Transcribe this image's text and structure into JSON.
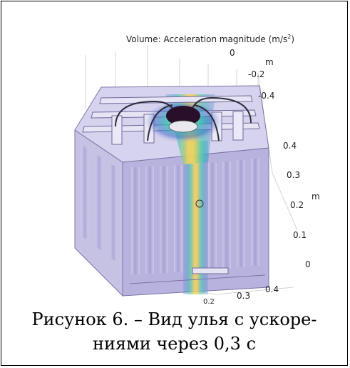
{
  "figure": {
    "title_prefix": "Volume: Acceleration magnitude (m/s",
    "title_sup": "2",
    "title_suffix": ")",
    "axis_top": {
      "ticks": [
        "0",
        "-0.2",
        "-0.4"
      ],
      "unit": "m"
    },
    "axis_right": {
      "ticks": [
        "0.4",
        "0.3",
        "0.2",
        "0.1",
        "0"
      ],
      "unit": "m"
    },
    "axis_bottom": {
      "ticks": [
        "0.2",
        "0.3",
        "0.4"
      ]
    },
    "colors": {
      "box": "#b8b3de",
      "box_edge": "#7a75a8",
      "accent_hot": "#f2d35a",
      "accent_mid": "#3ec7b4",
      "accent_cool": "#3a66c8"
    }
  },
  "caption": {
    "line1": "Рисунок 6. – Вид улья с ускоре-",
    "line2": "ниями через 0,3 с"
  }
}
